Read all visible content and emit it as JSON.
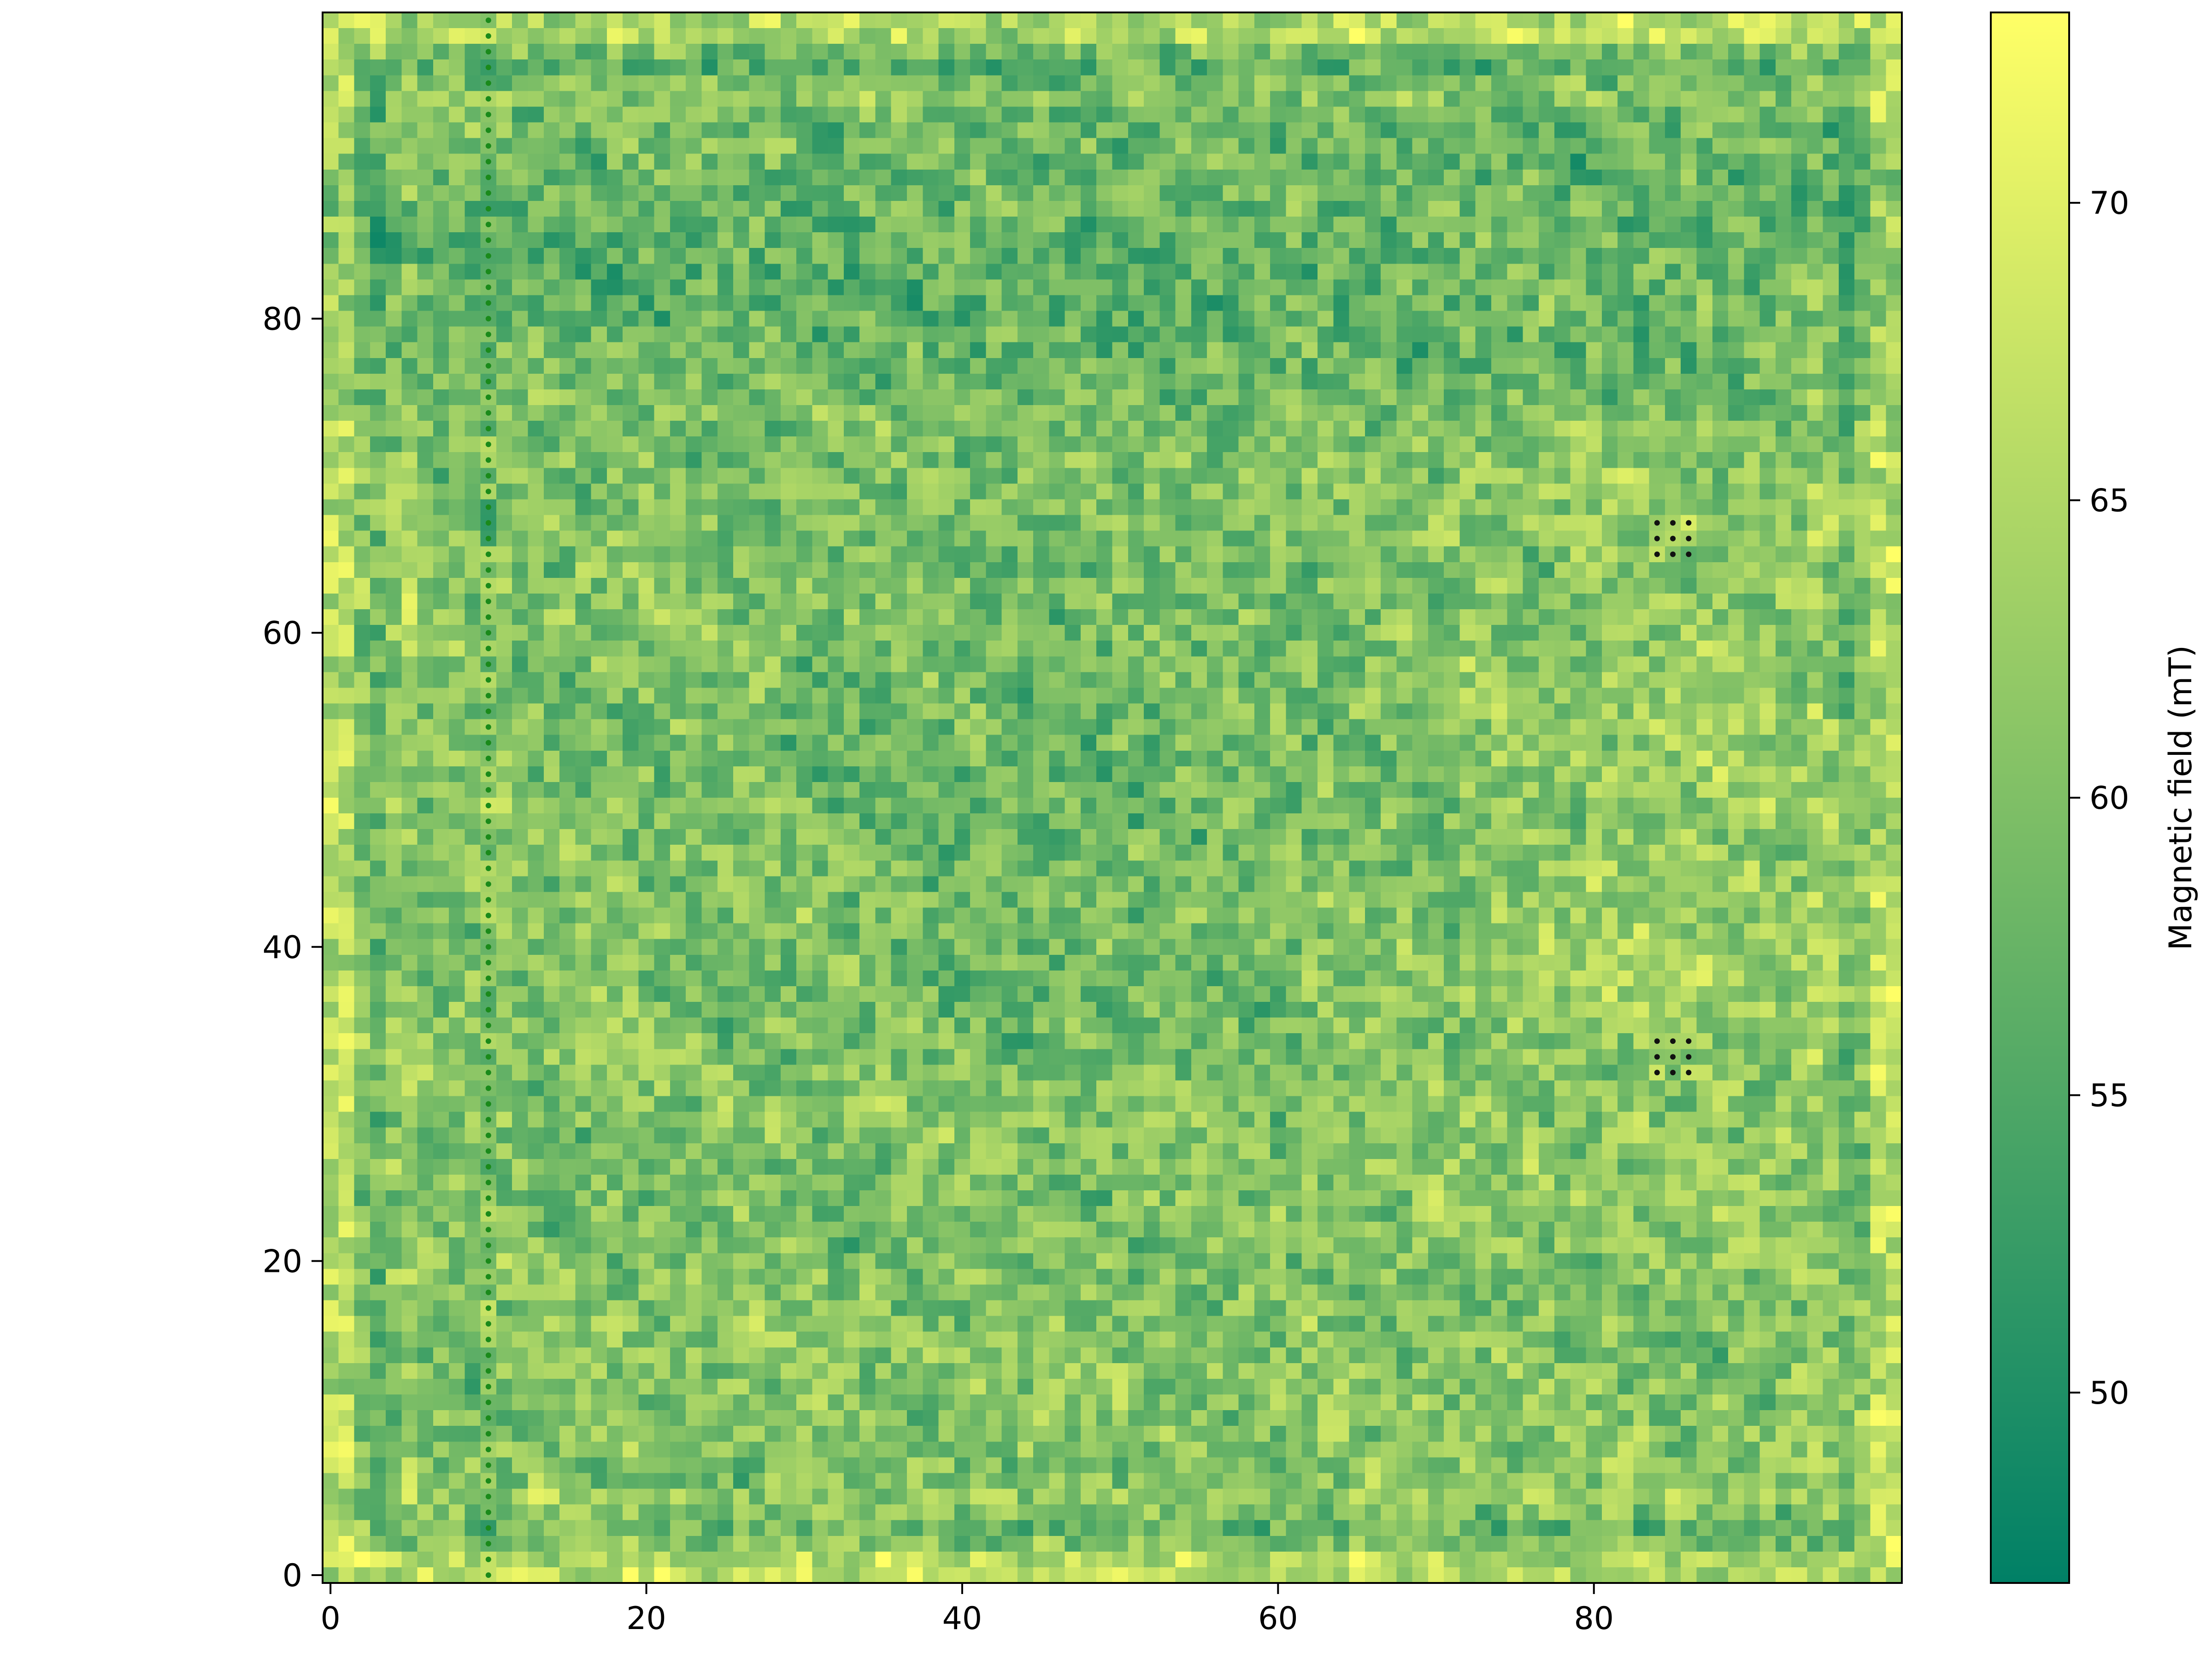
{
  "chart_data": {
    "type": "heatmap",
    "title": "",
    "xlabel": "",
    "ylabel": "",
    "grid_size": [
      100,
      100
    ],
    "xlim": [
      -0.5,
      99.5
    ],
    "ylim": [
      -0.5,
      99.5
    ],
    "x_ticks": [
      0,
      20,
      40,
      60,
      80
    ],
    "y_ticks": [
      0,
      20,
      40,
      60,
      80
    ],
    "x_tick_labels": [
      "0",
      "20",
      "40",
      "60",
      "80"
    ],
    "y_tick_labels": [
      "0",
      "20",
      "40",
      "60",
      "80"
    ],
    "colormap": "summer",
    "colormap_low": "#008066",
    "colormap_high": "#ffff66",
    "colorbar": {
      "label": "Magnetic field (mT)",
      "range": [
        46.8,
        73.2
      ],
      "ticks": [
        50,
        55,
        60,
        65,
        70
      ],
      "tick_labels": [
        "50",
        "55",
        "60",
        "65",
        "70"
      ],
      "position": "right"
    },
    "field_description": "noisy field values between about 47 and 73 mT; higher values near outer edges, lower values in the upper band and the centre",
    "overlays": [
      {
        "type": "vertical-dotted-line",
        "x": 10,
        "y_range": [
          0,
          99
        ],
        "color": "#1a8a1a"
      },
      {
        "type": "dot-grid",
        "x": [
          84,
          85,
          86
        ],
        "y": [
          65,
          66,
          67
        ],
        "color": "#111111"
      },
      {
        "type": "dot-grid",
        "x": [
          84,
          85,
          86
        ],
        "y": [
          32,
          33,
          34
        ],
        "color": "#111111"
      }
    ]
  }
}
